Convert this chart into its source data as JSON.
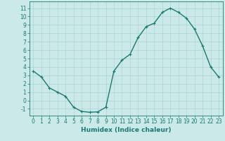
{
  "x": [
    0,
    1,
    2,
    3,
    4,
    5,
    6,
    7,
    8,
    9,
    10,
    11,
    12,
    13,
    14,
    15,
    16,
    17,
    18,
    19,
    20,
    21,
    22,
    23
  ],
  "y": [
    3.5,
    2.8,
    1.5,
    1.0,
    0.5,
    -0.8,
    -1.3,
    -1.4,
    -1.35,
    -0.8,
    3.5,
    4.8,
    5.5,
    7.5,
    8.8,
    9.2,
    10.5,
    11.0,
    10.5,
    9.8,
    8.5,
    6.5,
    4.0,
    2.8
  ],
  "line_color": "#1a7a6e",
  "marker": "+",
  "marker_size": 3,
  "bg_color": "#cce9e9",
  "grid_color": "#aad4d4",
  "xlabel": "Humidex (Indice chaleur)",
  "xlim": [
    -0.5,
    23.5
  ],
  "ylim": [
    -1.8,
    11.8
  ],
  "yticks": [
    -1,
    0,
    1,
    2,
    3,
    4,
    5,
    6,
    7,
    8,
    9,
    10,
    11
  ],
  "xticks": [
    0,
    1,
    2,
    3,
    4,
    5,
    6,
    7,
    8,
    9,
    10,
    11,
    12,
    13,
    14,
    15,
    16,
    17,
    18,
    19,
    20,
    21,
    22,
    23
  ],
  "tick_fontsize": 5.5,
  "label_fontsize": 6.5,
  "line_width": 1.0,
  "marker_edge_width": 0.8
}
